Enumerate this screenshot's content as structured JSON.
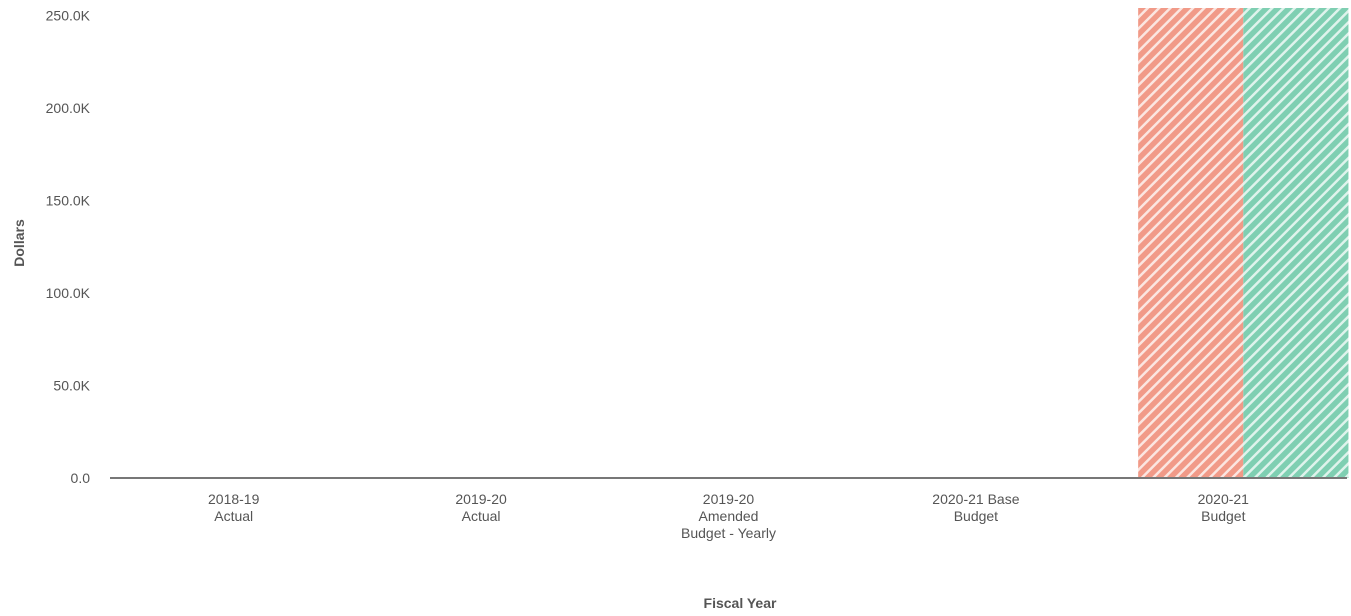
{
  "chart_data": {
    "type": "bar",
    "x_label": "Fiscal Year",
    "y_label": "Dollars",
    "categories": [
      "2018-19\nActual",
      "2019-20\nActual",
      "2019-20\nAmended\nBudget - Yearly",
      "2020-21 Base\nBudget",
      "2020-21\nBudget"
    ],
    "series": [
      {
        "color": "#f19a88",
        "values": [
          0,
          0,
          0,
          0,
          254000
        ]
      },
      {
        "color": "#7fcfb2",
        "values": [
          0,
          0,
          0,
          0,
          254000
        ]
      }
    ],
    "ylim": [
      0,
      254000
    ],
    "yticks": [
      {
        "value": 0,
        "label": "0.0"
      },
      {
        "value": 50000,
        "label": "50.0K"
      },
      {
        "value": 100000,
        "label": "100.0K"
      },
      {
        "value": 150000,
        "label": "150.0K"
      },
      {
        "value": 200000,
        "label": "200.0K"
      },
      {
        "value": 250000,
        "label": "250.0K"
      }
    ],
    "hatched": true
  }
}
